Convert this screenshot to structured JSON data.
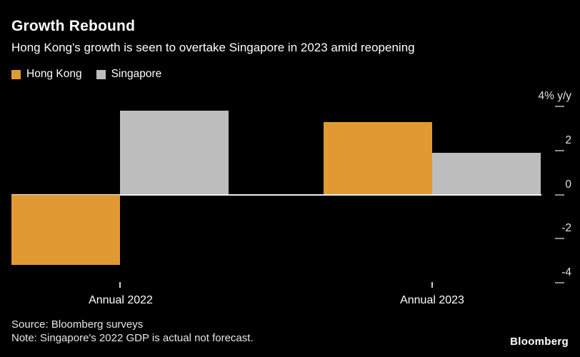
{
  "header": {
    "title": "Growth Rebound",
    "subtitle": "Hong Kong's growth is seen to overtake Singapore in 2023 amid reopening"
  },
  "legend": [
    {
      "label": "Hong Kong",
      "color": "#E19A33"
    },
    {
      "label": "Singapore",
      "color": "#BDBDBD"
    }
  ],
  "chart_data": {
    "type": "bar",
    "categories": [
      "Annual 2022",
      "Annual 2023"
    ],
    "series": [
      {
        "name": "Hong Kong",
        "color": "#E19A33",
        "values": [
          -3.2,
          3.3
        ]
      },
      {
        "name": "Singapore",
        "color": "#BDBDBD",
        "values": [
          3.8,
          1.9
        ]
      }
    ],
    "title": "Growth Rebound",
    "xlabel": "",
    "ylabel": "% y/y",
    "ylim": [
      -4.3,
      4.3
    ],
    "yticks": [
      4,
      2,
      0,
      -2,
      -4
    ],
    "ytick_labels": [
      "4% y/y",
      "2",
      "0",
      "-2",
      "-4"
    ],
    "grid": false,
    "legend_position": "top-left",
    "baseline": 0
  },
  "footer": {
    "source": "Source: Bloomberg surveys",
    "note": "Note: Singapore's 2022 GDP is actual not forecast.",
    "brand": "Bloomberg"
  }
}
